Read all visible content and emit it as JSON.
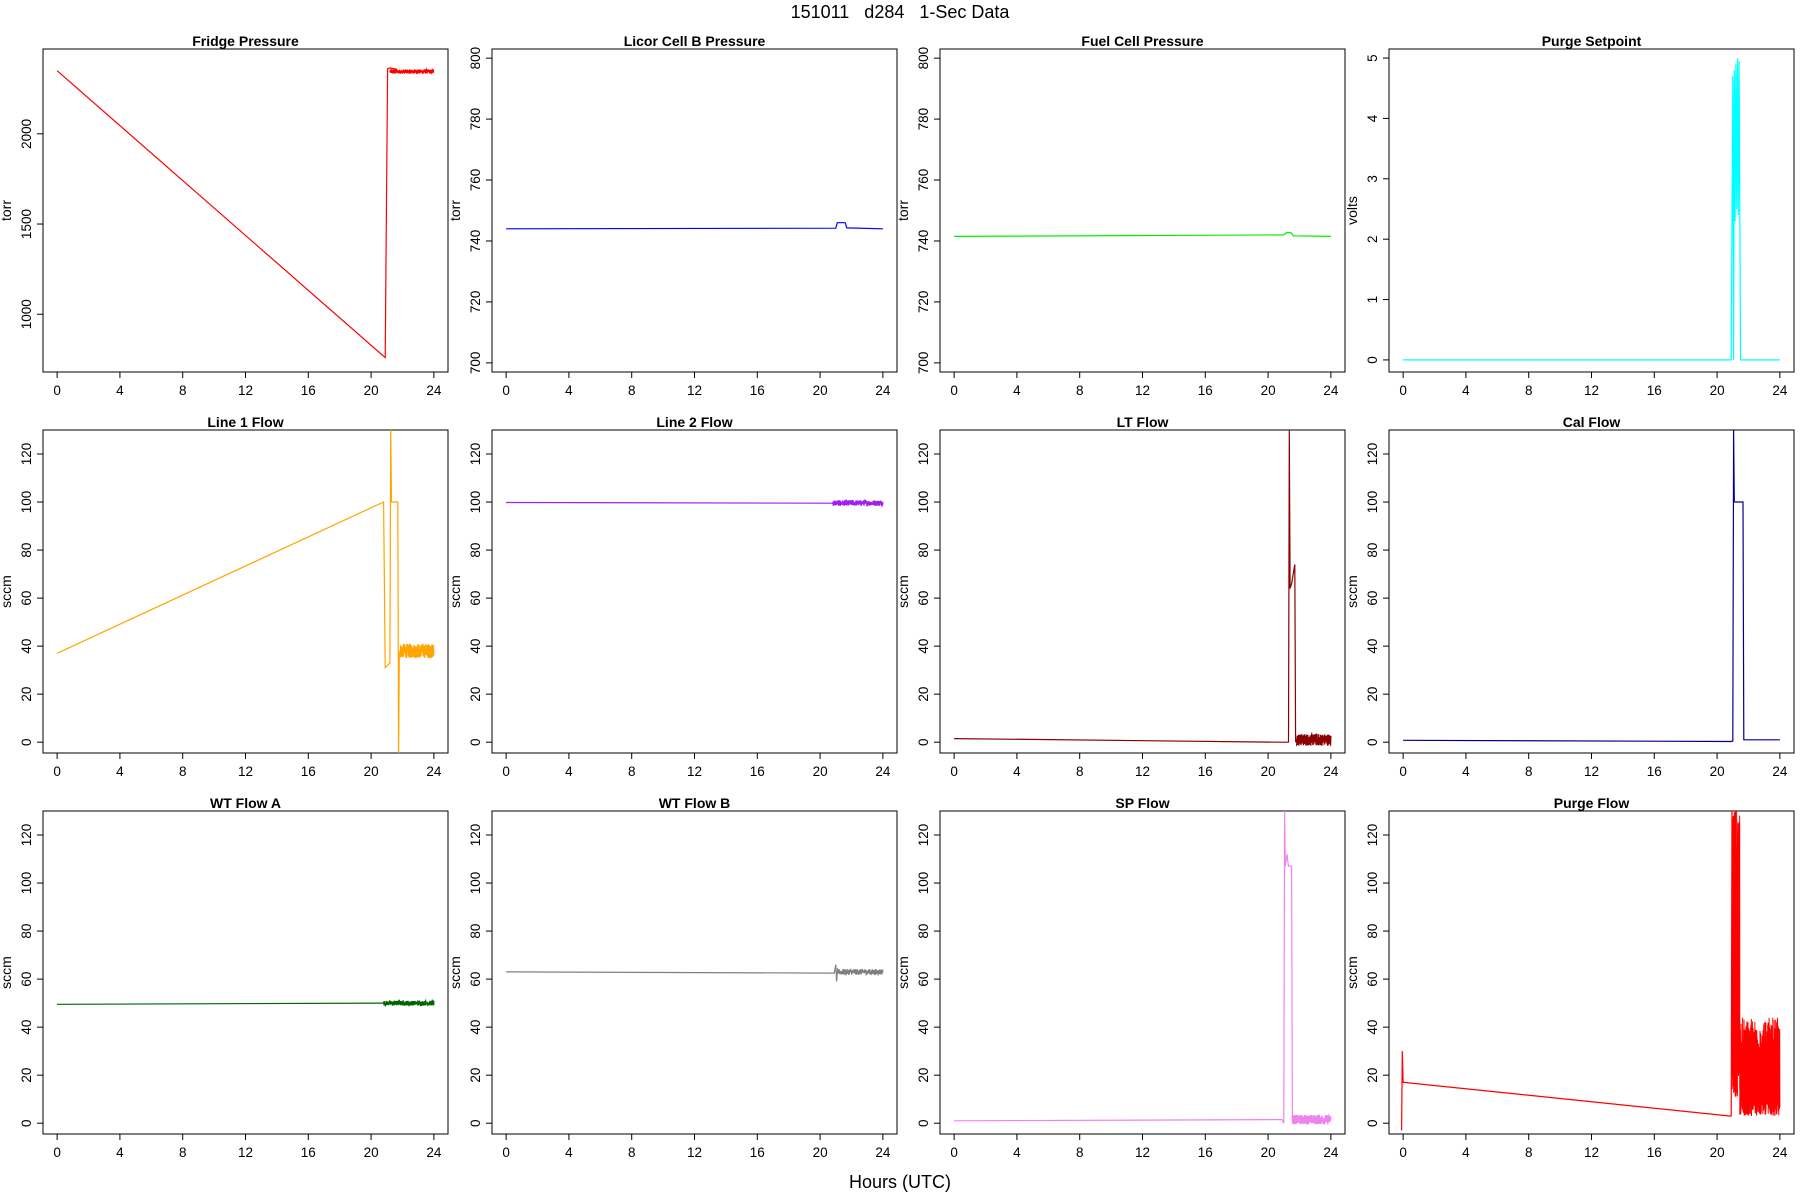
{
  "figure": {
    "title": "151011   d284   1-Sec Data",
    "xlabel": "Hours (UTC)"
  },
  "chart_data": [
    {
      "type": "line",
      "title": "Fridge Pressure",
      "ylabel": "torr",
      "color": "#ff0000",
      "xlim": [
        -0.9,
        24.9
      ],
      "ylim": [
        680,
        2470
      ],
      "xticks": [
        0,
        4,
        8,
        12,
        16,
        20,
        24
      ],
      "yticks": [
        1000,
        1500,
        2000
      ],
      "series": [
        {
          "x": [
            0,
            20.9,
            21.05,
            21.2,
            21.6,
            21.8,
            22,
            22.5,
            23,
            23.5,
            24
          ],
          "y": [
            2350,
            760,
            2360,
            2365,
            2358,
            2340,
            2345,
            2348,
            2350,
            2346,
            2349
          ]
        }
      ],
      "noise": {
        "x0": 21.2,
        "x1": 24,
        "base": 2345,
        "amp": 12
      }
    },
    {
      "type": "line",
      "title": "Licor Cell B Pressure",
      "ylabel": "torr",
      "color": "#0000ff",
      "xlim": [
        -0.9,
        24.9
      ],
      "ylim": [
        697,
        803
      ],
      "xticks": [
        0,
        4,
        8,
        12,
        16,
        20,
        24
      ],
      "yticks": [
        700,
        720,
        740,
        760,
        780,
        800
      ],
      "series": [
        {
          "x": [
            0,
            21,
            21.1,
            21.6,
            21.7,
            24
          ],
          "y": [
            744,
            744.2,
            746,
            746,
            744.3,
            744
          ]
        }
      ]
    },
    {
      "type": "line",
      "title": "Fuel Cell Pressure",
      "ylabel": "torr",
      "color": "#00ee00",
      "xlim": [
        -0.9,
        24.9
      ],
      "ylim": [
        697,
        803
      ],
      "xticks": [
        0,
        4,
        8,
        12,
        16,
        20,
        24
      ],
      "yticks": [
        700,
        720,
        740,
        760,
        780,
        800
      ],
      "series": [
        {
          "x": [
            0,
            21,
            21.2,
            21.5,
            21.6,
            24
          ],
          "y": [
            741.5,
            742,
            742.8,
            742.6,
            741.7,
            741.5
          ]
        }
      ]
    },
    {
      "type": "line",
      "title": "Purge Setpoint",
      "ylabel": "volts",
      "color": "#00ffff",
      "xlim": [
        -0.9,
        24.9
      ],
      "ylim": [
        -0.2,
        5.15
      ],
      "xticks": [
        0,
        4,
        8,
        12,
        16,
        20,
        24
      ],
      "yticks": [
        0,
        1,
        2,
        3,
        4,
        5
      ],
      "series": [
        {
          "x": [
            0,
            20.9,
            21,
            21.05,
            21.1,
            21.15,
            21.2,
            21.25,
            21.3,
            21.35,
            21.4,
            21.45,
            21.5,
            21.55,
            21.6,
            24
          ],
          "y": [
            0,
            0,
            4.7,
            0,
            4.8,
            2.3,
            4.9,
            2.5,
            5,
            2.4,
            4.95,
            2.5,
            0,
            0,
            0,
            0
          ]
        }
      ]
    },
    {
      "type": "line",
      "title": "Line 1 Flow",
      "ylabel": "sccm",
      "color": "#ffa500",
      "xlim": [
        -0.9,
        24.9
      ],
      "ylim": [
        -4.5,
        130
      ],
      "xticks": [
        0,
        4,
        8,
        12,
        16,
        20,
        24
      ],
      "yticks": [
        0,
        20,
        40,
        60,
        80,
        100,
        120
      ],
      "series": [
        {
          "x": [
            0,
            20.8,
            20.9,
            21.2,
            21.25,
            21.3,
            21.35,
            21.7,
            21.75,
            21.8,
            21.85,
            21.9,
            24
          ],
          "y": [
            37,
            100,
            31,
            33,
            130,
            100,
            100,
            100,
            -5,
            36,
            38,
            39,
            38
          ]
        }
      ],
      "noise": {
        "x0": 21.8,
        "x1": 24,
        "base": 38,
        "amp": 3
      }
    },
    {
      "type": "line",
      "title": "Line 2 Flow",
      "ylabel": "sccm",
      "color": "#a020f0",
      "xlim": [
        -0.9,
        24.9
      ],
      "ylim": [
        -4.5,
        130
      ],
      "xticks": [
        0,
        4,
        8,
        12,
        16,
        20,
        24
      ],
      "yticks": [
        0,
        20,
        40,
        60,
        80,
        100,
        120
      ],
      "series": [
        {
          "x": [
            0,
            20.8,
            24
          ],
          "y": [
            99.8,
            99.5,
            99.5
          ]
        }
      ],
      "noise": {
        "x0": 20.8,
        "x1": 24,
        "base": 99.6,
        "amp": 1.2
      }
    },
    {
      "type": "line",
      "title": "LT Flow",
      "ylabel": "sccm",
      "color": "#8b0000",
      "xlim": [
        -0.9,
        24.9
      ],
      "ylim": [
        -4.5,
        130
      ],
      "xticks": [
        0,
        4,
        8,
        12,
        16,
        20,
        24
      ],
      "yticks": [
        0,
        20,
        40,
        60,
        80,
        100,
        120
      ],
      "series": [
        {
          "x": [
            0,
            20.8,
            21,
            21.3,
            21.35,
            21.4,
            21.5,
            21.6,
            21.7,
            21.75,
            21.8,
            24
          ],
          "y": [
            1.5,
            0,
            0,
            0,
            130,
            64,
            66,
            70,
            74,
            0,
            1,
            1
          ]
        }
      ],
      "noise": {
        "x0": 21.8,
        "x1": 24,
        "base": 1,
        "amp": 2.5
      }
    },
    {
      "type": "line",
      "title": "Cal Flow",
      "ylabel": "sccm",
      "color": "#00008b",
      "xlim": [
        -0.9,
        24.9
      ],
      "ylim": [
        -4.5,
        130
      ],
      "xticks": [
        0,
        4,
        8,
        12,
        16,
        20,
        24
      ],
      "yticks": [
        0,
        20,
        40,
        60,
        80,
        100,
        120
      ],
      "series": [
        {
          "x": [
            0,
            20.9,
            21,
            21.05,
            21.1,
            21.3,
            21.65,
            21.7,
            24
          ],
          "y": [
            0.8,
            0.3,
            0.5,
            130,
            100,
            100,
            100,
            1,
            1
          ]
        }
      ]
    },
    {
      "type": "line",
      "title": "WT Flow A",
      "ylabel": "sccm",
      "color": "#006400",
      "xlim": [
        -0.9,
        24.9
      ],
      "ylim": [
        -4.5,
        130
      ],
      "xticks": [
        0,
        4,
        8,
        12,
        16,
        20,
        24
      ],
      "yticks": [
        0,
        20,
        40,
        60,
        80,
        100,
        120
      ],
      "series": [
        {
          "x": [
            0,
            20.8,
            24
          ],
          "y": [
            49.5,
            50,
            50
          ]
        }
      ],
      "noise": {
        "x0": 20.8,
        "x1": 24,
        "base": 50,
        "amp": 1
      }
    },
    {
      "type": "line",
      "title": "WT Flow B",
      "ylabel": "sccm",
      "color": "#7f7f7f",
      "xlim": [
        -0.9,
        24.9
      ],
      "ylim": [
        -4.5,
        130
      ],
      "xticks": [
        0,
        4,
        8,
        12,
        16,
        20,
        24
      ],
      "yticks": [
        0,
        20,
        40,
        60,
        80,
        100,
        120
      ],
      "series": [
        {
          "x": [
            0,
            20.9,
            21,
            21.05,
            21.1,
            24
          ],
          "y": [
            63,
            62.5,
            66,
            59,
            63,
            63
          ]
        }
      ],
      "noise": {
        "x0": 21.1,
        "x1": 24,
        "base": 63,
        "amp": 1.2
      }
    },
    {
      "type": "line",
      "title": "SP Flow",
      "ylabel": "sccm",
      "color": "#ee82ee",
      "xlim": [
        -0.9,
        24.9
      ],
      "ylim": [
        -4.5,
        130
      ],
      "xticks": [
        0,
        4,
        8,
        12,
        16,
        20,
        24
      ],
      "yticks": [
        0,
        20,
        40,
        60,
        80,
        100,
        120
      ],
      "series": [
        {
          "x": [
            0,
            20.9,
            21,
            21.05,
            21.1,
            21.2,
            21.3,
            21.5,
            21.55,
            21.6,
            24
          ],
          "y": [
            1,
            1.5,
            0,
            130,
            107,
            112,
            107,
            107,
            0,
            2,
            1.5
          ]
        }
      ],
      "noise": {
        "x0": 21.6,
        "x1": 24,
        "base": 1.5,
        "amp": 2
      }
    },
    {
      "type": "line",
      "title": "Purge Flow",
      "ylabel": "sccm",
      "color": "#ff0000",
      "xlim": [
        -0.9,
        24.9
      ],
      "ylim": [
        -4.5,
        130
      ],
      "xticks": [
        0,
        4,
        8,
        12,
        16,
        20,
        24
      ],
      "yticks": [
        0,
        20,
        40,
        60,
        80,
        100,
        120
      ],
      "series": [
        {
          "x": [
            -0.1,
            -0.05,
            0,
            0.05,
            20.8,
            20.9,
            20.95
          ],
          "y": [
            -3,
            30,
            17,
            17,
            3,
            3,
            130
          ]
        }
      ],
      "noise": {
        "x0": 20.95,
        "x1": 24,
        "base": 20,
        "amp": 20,
        "spike": {
          "x0": 20.95,
          "x1": 21.45,
          "base": 70,
          "amp": 62
        }
      }
    }
  ]
}
